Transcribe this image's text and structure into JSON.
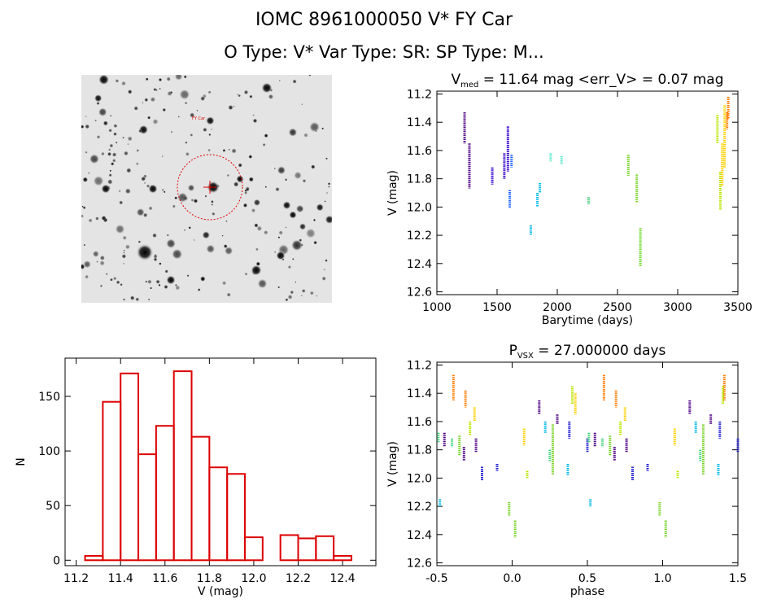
{
  "header": {
    "title": "IOMC 8961000050    V* FY Car",
    "subtitle": "O Type: V*  Var Type: SR:  SP Type: M..."
  },
  "image_panel": {
    "alt": "Sky image of star field around target",
    "marker_label": "FY Car"
  },
  "chart_data": [
    {
      "id": "lightcurve",
      "type": "scatter",
      "title_main": "V",
      "title_sub": "med",
      "title_rest": " = 11.64 mag <err_V> = 0.07 mag",
      "xlabel": "Barytime (days)",
      "ylabel": "V (mag)",
      "xlim": [
        1000,
        3500
      ],
      "ylim": [
        12.62,
        11.18
      ],
      "xticks": [
        1000,
        1500,
        2000,
        2500,
        3000,
        3500
      ],
      "yticks": [
        11.2,
        11.4,
        11.6,
        11.8,
        12.0,
        12.2,
        12.4,
        12.6
      ],
      "series": [
        {
          "name": "s1",
          "color": "#4b0082",
          "x": [
            1230,
            1270
          ],
          "y0": [
            11.33,
            11.55
          ],
          "y1": [
            11.55,
            11.87
          ]
        },
        {
          "name": "s2",
          "color": "#3300cc",
          "x": [
            1460,
            1560,
            1590
          ],
          "y0": [
            11.72,
            11.62,
            11.43
          ],
          "y1": [
            11.84,
            11.8,
            11.75
          ]
        },
        {
          "name": "s3",
          "color": "#1e64ff",
          "x": [
            1605,
            1620
          ],
          "y0": [
            11.88,
            11.63
          ],
          "y1": [
            12.01,
            11.72
          ]
        },
        {
          "name": "s4",
          "color": "#00b8e6",
          "x": [
            1780,
            1835,
            1855
          ],
          "y0": [
            12.13,
            11.9,
            11.83
          ],
          "y1": [
            12.2,
            12.0,
            11.9
          ]
        },
        {
          "name": "s5",
          "color": "#55e6c8",
          "x": [
            1945,
            2035
          ],
          "y0": [
            11.62,
            11.64
          ],
          "y1": [
            11.68,
            11.7
          ]
        },
        {
          "name": "s6",
          "color": "#44d27a",
          "x": [
            2260
          ],
          "y0": [
            11.93
          ],
          "y1": [
            11.98
          ]
        },
        {
          "name": "s7",
          "color": "#7ad22a",
          "x": [
            2590,
            2660
          ],
          "y0": [
            11.63,
            11.77
          ],
          "y1": [
            11.78,
            11.97
          ]
        },
        {
          "name": "s8",
          "color": "#6cdc28",
          "x": [
            2690
          ],
          "y0": [
            12.15
          ],
          "y1": [
            12.42
          ]
        },
        {
          "name": "s9",
          "color": "#b8e600",
          "x": [
            3330,
            3355
          ],
          "y0": [
            11.35,
            11.75
          ],
          "y1": [
            11.55,
            12.02
          ]
        },
        {
          "name": "s10",
          "color": "#ffd000",
          "x": [
            3370,
            3390
          ],
          "y0": [
            11.55,
            11.28
          ],
          "y1": [
            11.85,
            11.72
          ]
        },
        {
          "name": "s11",
          "color": "#ff7a00",
          "x": [
            3410,
            3420
          ],
          "y0": [
            11.33,
            11.22
          ],
          "y1": [
            11.45,
            11.38
          ]
        }
      ]
    },
    {
      "id": "histogram",
      "type": "bar",
      "xlabel": "V (mag)",
      "ylabel": "N",
      "xlim": [
        11.15,
        12.55
      ],
      "ylim": [
        -5,
        185
      ],
      "xticks": [
        11.2,
        11.4,
        11.6,
        11.8,
        12.0,
        12.2,
        12.4
      ],
      "yticks": [
        0,
        50,
        100,
        150
      ],
      "bin_width": 0.08,
      "bin_starts": [
        11.24,
        11.32,
        11.4,
        11.48,
        11.56,
        11.64,
        11.72,
        11.8,
        11.88,
        11.96,
        12.04,
        12.12,
        12.2,
        12.28,
        12.36
      ],
      "values": [
        4,
        145,
        171,
        97,
        123,
        173,
        113,
        85,
        79,
        21,
        0,
        23,
        20,
        22,
        4
      ],
      "color": "#dd0000"
    },
    {
      "id": "phased",
      "type": "scatter",
      "title_main": "P",
      "title_sub": "VSX",
      "title_rest": " = 27.000000 days",
      "xlabel": "phase",
      "ylabel": "V (mag)",
      "xlim": [
        -0.5,
        1.5
      ],
      "ylim": [
        12.62,
        11.18
      ],
      "xticks": [
        -0.5,
        0.0,
        0.5,
        1.0,
        1.5
      ],
      "yticks": [
        11.2,
        11.4,
        11.6,
        11.8,
        12.0,
        12.2,
        12.4,
        12.6
      ],
      "series": [
        {
          "name": "orange",
          "color": "#ff7a00",
          "x": [
            -0.39,
            -0.31,
            0.61,
            0.69,
            1.41
          ],
          "y0": [
            11.27,
            11.38,
            11.27,
            11.38,
            11.27
          ],
          "y1": [
            11.45,
            11.5,
            11.45,
            11.5,
            11.45
          ]
        },
        {
          "name": "yellow",
          "color": "#ffd000",
          "x": [
            -0.25,
            0.08,
            0.42,
            0.75,
            1.08
          ],
          "y0": [
            11.5,
            11.65,
            11.4,
            11.5,
            11.65
          ],
          "y1": [
            11.6,
            11.77,
            11.55,
            11.6,
            11.77
          ]
        },
        {
          "name": "purple",
          "color": "#4b0082",
          "x": [
            -0.45,
            -0.32,
            -0.24,
            0.18,
            0.3,
            0.55,
            0.68,
            0.76,
            1.18,
            1.32
          ],
          "y0": [
            11.68,
            11.78,
            11.72,
            11.45,
            11.55,
            11.68,
            11.78,
            11.72,
            11.45,
            11.55
          ],
          "y1": [
            11.78,
            11.88,
            11.82,
            11.55,
            11.62,
            11.78,
            11.88,
            11.82,
            11.55,
            11.62
          ]
        },
        {
          "name": "blue",
          "color": "#2020d0",
          "x": [
            -0.2,
            -0.1,
            0.38,
            0.5,
            0.8,
            0.9,
            1.38,
            1.5
          ],
          "y0": [
            11.92,
            11.9,
            11.6,
            11.72,
            11.92,
            11.9,
            11.6,
            11.72
          ],
          "y1": [
            12.02,
            11.95,
            11.72,
            11.82,
            12.02,
            11.95,
            11.72,
            11.82
          ]
        },
        {
          "name": "cyan",
          "color": "#00b8e6",
          "x": [
            -0.48,
            0.22,
            0.37,
            0.52,
            1.22,
            1.37
          ],
          "y0": [
            12.15,
            11.6,
            11.9,
            12.15,
            11.6,
            11.9
          ],
          "y1": [
            12.2,
            11.68,
            11.98,
            12.2,
            11.68,
            11.98
          ]
        },
        {
          "name": "green",
          "color": "#44d27a",
          "x": [
            -0.49,
            -0.4,
            0.25,
            0.51,
            0.6,
            1.25
          ],
          "y0": [
            11.68,
            11.72,
            11.8,
            11.68,
            11.72,
            11.8
          ],
          "y1": [
            11.75,
            11.78,
            11.88,
            11.75,
            11.78,
            11.88
          ]
        },
        {
          "name": "lime",
          "color": "#7ad22a",
          "x": [
            -0.35,
            -0.02,
            0.02,
            0.27,
            0.65,
            0.98,
            1.02,
            1.27
          ],
          "y0": [
            11.7,
            12.17,
            12.3,
            11.62,
            11.7,
            12.17,
            12.3,
            11.62
          ],
          "y1": [
            11.84,
            12.27,
            12.42,
            11.98,
            11.84,
            12.27,
            12.42,
            11.98
          ]
        },
        {
          "name": "yellowgreen",
          "color": "#b8e600",
          "x": [
            -0.28,
            0.1,
            0.4,
            0.72,
            1.1,
            1.4
          ],
          "y0": [
            11.6,
            11.95,
            11.35,
            11.6,
            11.95,
            11.35
          ],
          "y1": [
            11.7,
            12.0,
            11.48,
            11.7,
            12.0,
            11.48
          ]
        }
      ]
    }
  ]
}
